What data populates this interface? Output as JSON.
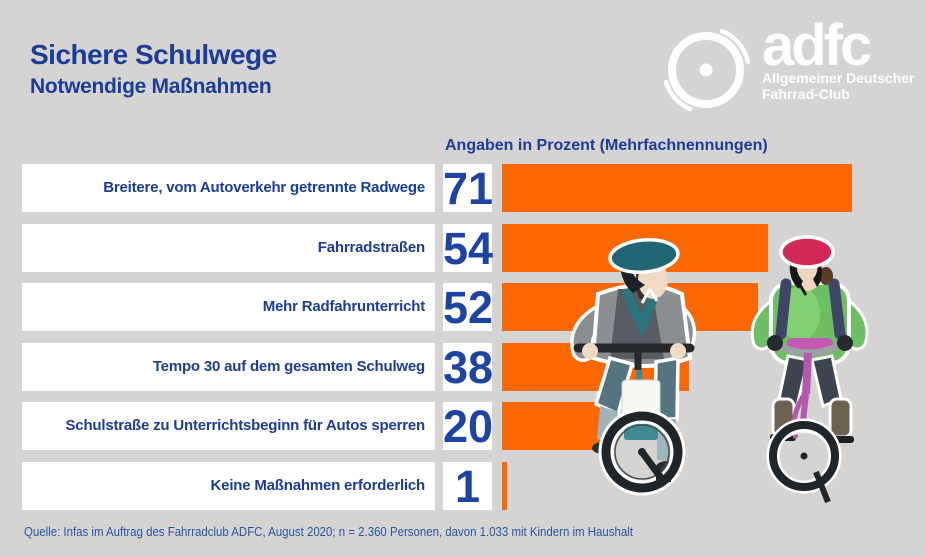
{
  "title": "Sichere Schulwege",
  "subtitle": "Notwendige Maßnahmen",
  "logo": {
    "brand": "adfc",
    "subtitle_line1": "Allgemeiner Deutscher",
    "subtitle_line2": "Fahrrad-Club",
    "icon": "adfc-wheel-icon"
  },
  "chart_data": {
    "type": "bar",
    "orientation": "horizontal",
    "title": "Sichere Schulwege – Notwendige Maßnahmen",
    "units_header": "Angaben in Prozent (Mehrfachnennungen)",
    "unit": "%",
    "categories": [
      "Breitere, vom Autoverkehr getrennte Radwege",
      "Fahrradstraßen",
      "Mehr Radfahrunterricht",
      "Tempo 30 auf dem gesamten Schulweg",
      "Schulstraße zu Unterrichtsbeginn für Autos sperren",
      "Keine Maßnahmen erforderlich"
    ],
    "values": [
      71,
      54,
      52,
      38,
      20,
      1
    ],
    "xlim": [
      0,
      86
    ],
    "grid": false,
    "axis_hidden": true,
    "legend": "none",
    "bar_color": "#fb6702",
    "value_color": "#1e44a3"
  },
  "illustration": {
    "description": "Two children wearing bike helmets riding bicycles, watercolor style"
  },
  "source": "Quelle: Infas im Auftrag des Fahrradclub ADFC, August 2020; n = 2.360 Personen, davon 1.033 mit Kindern im Haushalt",
  "colors": {
    "background": "#d5d4d2",
    "panel": "#ffffff",
    "heading": "#1c3d96",
    "logo": "#fdfdfc"
  }
}
